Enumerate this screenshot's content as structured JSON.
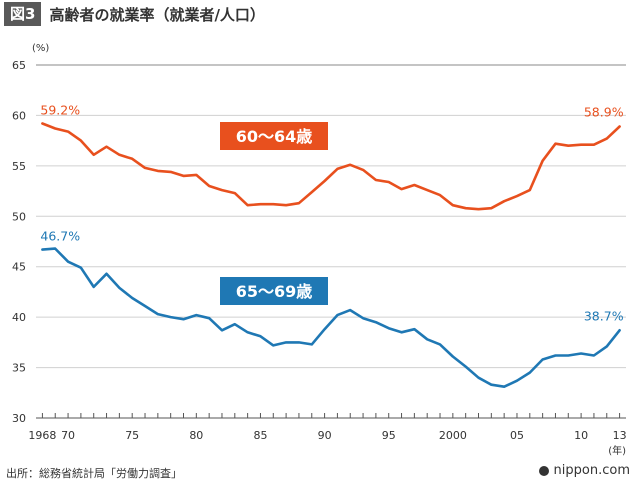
{
  "header": {
    "figure_label": "図3",
    "title": "高齢者の就業率（就業者/人口）"
  },
  "footer": {
    "source": "出所：総務省統計局「労働力調査」",
    "logo": "nippon.com"
  },
  "chart_data": {
    "type": "line",
    "unit_label": "(%)",
    "x_unit_label": "(年)",
    "ylim": [
      30,
      65
    ],
    "yticks": [
      30,
      35,
      40,
      45,
      50,
      55,
      60,
      65
    ],
    "xlim": [
      1967.5,
      2013.5
    ],
    "x_tick_labels": [
      {
        "x": 1968,
        "label": "1968"
      },
      {
        "x": 1970,
        "label": "70"
      },
      {
        "x": 1975,
        "label": "75"
      },
      {
        "x": 1980,
        "label": "80"
      },
      {
        "x": 1985,
        "label": "85"
      },
      {
        "x": 1990,
        "label": "90"
      },
      {
        "x": 1995,
        "label": "95"
      },
      {
        "x": 2000,
        "label": "2000"
      },
      {
        "x": 2005,
        "label": "05"
      },
      {
        "x": 2010,
        "label": "10"
      },
      {
        "x": 2013,
        "label": "13"
      }
    ],
    "x": [
      1968,
      1969,
      1970,
      1971,
      1972,
      1973,
      1974,
      1975,
      1976,
      1977,
      1978,
      1979,
      1980,
      1981,
      1982,
      1983,
      1984,
      1985,
      1986,
      1987,
      1988,
      1989,
      1990,
      1991,
      1992,
      1993,
      1994,
      1995,
      1996,
      1997,
      1998,
      1999,
      2000,
      2001,
      2002,
      2003,
      2004,
      2005,
      2006,
      2007,
      2008,
      2009,
      2010,
      2011,
      2012,
      2013
    ],
    "series": [
      {
        "name": "60〜64歳",
        "color": "#e8501e",
        "values": [
          59.2,
          58.7,
          58.4,
          57.5,
          56.1,
          56.9,
          56.1,
          55.7,
          54.8,
          54.5,
          54.4,
          54.0,
          54.1,
          53.0,
          52.6,
          52.3,
          51.1,
          51.2,
          51.2,
          51.1,
          51.3,
          52.4,
          53.5,
          54.7,
          55.1,
          54.6,
          53.6,
          53.4,
          52.7,
          53.1,
          52.6,
          52.1,
          51.1,
          50.8,
          50.7,
          50.8,
          51.5,
          52.0,
          52.6,
          55.5,
          57.2,
          57.0,
          57.1,
          57.1,
          57.7,
          58.9
        ],
        "start_label": "59.2%",
        "end_label": "58.9%",
        "legend_label": "60〜64歳"
      },
      {
        "name": "65〜69歳",
        "color": "#1f78b4",
        "values": [
          46.7,
          46.8,
          45.5,
          44.9,
          43.0,
          44.3,
          42.9,
          41.9,
          41.1,
          40.3,
          40.0,
          39.8,
          40.2,
          39.9,
          38.7,
          39.3,
          38.5,
          38.1,
          37.2,
          37.5,
          37.5,
          37.3,
          38.8,
          40.2,
          40.7,
          39.9,
          39.5,
          38.9,
          38.5,
          38.8,
          37.8,
          37.3,
          36.1,
          35.1,
          34.0,
          33.3,
          33.1,
          33.7,
          34.5,
          35.8,
          36.2,
          36.2,
          36.4,
          36.2,
          37.1,
          38.7
        ],
        "start_label": "46.7%",
        "end_label": "38.7%",
        "legend_label": "65〜69歳"
      }
    ]
  }
}
